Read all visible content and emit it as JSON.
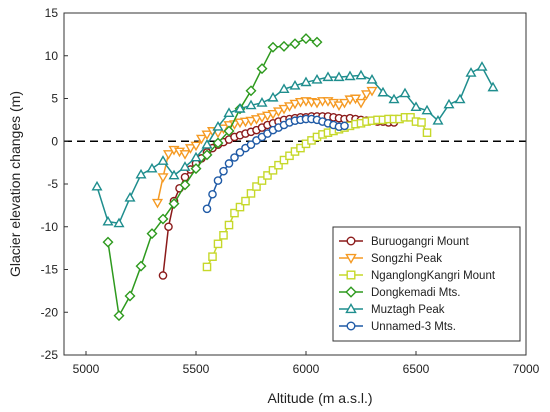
{
  "chart_data": {
    "type": "line",
    "title": "",
    "xlabel": "Altitude (m a.s.l.)",
    "ylabel": "Glacier elevation changes (m)",
    "xlim": [
      4900,
      7000
    ],
    "ylim": [
      -25,
      15
    ],
    "xticks": [
      5000,
      5500,
      6000,
      6500,
      7000
    ],
    "yticks": [
      -25,
      -20,
      -15,
      -10,
      -5,
      0,
      5,
      10,
      15
    ],
    "reference_line": {
      "y": 0,
      "style": "dashed"
    },
    "legend_position": "bottom-right",
    "grid": false,
    "series": [
      {
        "name": "Buruogangri Mount",
        "color": "#8b1a1a",
        "marker": "circle",
        "points": [
          [
            5350,
            -15.7
          ],
          [
            5375,
            -10
          ],
          [
            5400,
            -7
          ],
          [
            5425,
            -5.5
          ],
          [
            5450,
            -4.2
          ],
          [
            5475,
            -3.3
          ],
          [
            5500,
            -2.6
          ],
          [
            5525,
            -2
          ],
          [
            5550,
            -1.3
          ],
          [
            5575,
            -0.8
          ],
          [
            5600,
            -0.4
          ],
          [
            5625,
            -0.1
          ],
          [
            5650,
            0.2
          ],
          [
            5675,
            0.5
          ],
          [
            5700,
            0.7
          ],
          [
            5725,
            0.9
          ],
          [
            5750,
            1.1
          ],
          [
            5775,
            1.3
          ],
          [
            5800,
            1.6
          ],
          [
            5825,
            1.9
          ],
          [
            5850,
            2.1
          ],
          [
            5875,
            2.3
          ],
          [
            5900,
            2.5
          ],
          [
            5925,
            2.6
          ],
          [
            5950,
            2.7
          ],
          [
            5975,
            2.8
          ],
          [
            6000,
            2.8
          ],
          [
            6025,
            2.9
          ],
          [
            6050,
            2.9
          ],
          [
            6075,
            2.9
          ],
          [
            6100,
            2.9
          ],
          [
            6125,
            2.8
          ],
          [
            6150,
            2.7
          ],
          [
            6175,
            2.6
          ],
          [
            6200,
            2.7
          ],
          [
            6225,
            2.6
          ],
          [
            6250,
            2.5
          ],
          [
            6275,
            2.4
          ],
          [
            6300,
            2.4
          ],
          [
            6325,
            2.3
          ],
          [
            6350,
            2.3
          ],
          [
            6375,
            2.2
          ],
          [
            6400,
            2.2
          ]
        ]
      },
      {
        "name": "Songzhi Peak",
        "color": "#f59a23",
        "marker": "triangle-down",
        "points": [
          [
            5325,
            -7.2
          ],
          [
            5350,
            -4.2
          ],
          [
            5375,
            -1.5
          ],
          [
            5400,
            -1.0
          ],
          [
            5425,
            -1.2
          ],
          [
            5450,
            -1.5
          ],
          [
            5475,
            -0.8
          ],
          [
            5500,
            -0.5
          ],
          [
            5525,
            0.3
          ],
          [
            5550,
            0.8
          ],
          [
            5575,
            1.2
          ],
          [
            5600,
            1.0
          ],
          [
            5625,
            1.5
          ],
          [
            5650,
            1.9
          ],
          [
            5675,
            2.0
          ],
          [
            5700,
            2.2
          ],
          [
            5725,
            2.3
          ],
          [
            5750,
            2.4
          ],
          [
            5775,
            2.6
          ],
          [
            5800,
            2.8
          ],
          [
            5825,
            3.0
          ],
          [
            5850,
            3.2
          ],
          [
            5875,
            3.5
          ],
          [
            5900,
            3.8
          ],
          [
            5925,
            4.1
          ],
          [
            5950,
            4.4
          ],
          [
            5975,
            4.6
          ],
          [
            6000,
            4.7
          ],
          [
            6025,
            4.6
          ],
          [
            6050,
            4.5
          ],
          [
            6075,
            4.7
          ],
          [
            6100,
            4.7
          ],
          [
            6125,
            4.5
          ],
          [
            6150,
            4.2
          ],
          [
            6175,
            4.5
          ],
          [
            6200,
            4.9
          ],
          [
            6225,
            5.0
          ],
          [
            6250,
            4.5
          ],
          [
            6275,
            5.5
          ],
          [
            6300,
            5.9
          ]
        ]
      },
      {
        "name": "NganglongKangri Mount",
        "color": "#c6d82a",
        "marker": "square",
        "points": [
          [
            5550,
            -14.7
          ],
          [
            5575,
            -13.5
          ],
          [
            5600,
            -12
          ],
          [
            5625,
            -11
          ],
          [
            5650,
            -9.8
          ],
          [
            5675,
            -8.4
          ],
          [
            5700,
            -7.7
          ],
          [
            5725,
            -7
          ],
          [
            5750,
            -6.1
          ],
          [
            5775,
            -5.3
          ],
          [
            5800,
            -4.6
          ],
          [
            5825,
            -4
          ],
          [
            5850,
            -3.4
          ],
          [
            5875,
            -2.8
          ],
          [
            5900,
            -2.2
          ],
          [
            5925,
            -1.7
          ],
          [
            5950,
            -1.2
          ],
          [
            5975,
            -0.8
          ],
          [
            6000,
            -0.3
          ],
          [
            6025,
            0.1
          ],
          [
            6050,
            0.5
          ],
          [
            6075,
            0.8
          ],
          [
            6100,
            1.0
          ],
          [
            6125,
            1.2
          ],
          [
            6150,
            1.4
          ],
          [
            6175,
            1.6
          ],
          [
            6200,
            1.8
          ],
          [
            6225,
            2.0
          ],
          [
            6250,
            2.1
          ],
          [
            6275,
            2.3
          ],
          [
            6300,
            2.4
          ],
          [
            6325,
            2.5
          ],
          [
            6350,
            2.5
          ],
          [
            6375,
            2.6
          ],
          [
            6400,
            2.6
          ],
          [
            6425,
            2.6
          ],
          [
            6450,
            2.8
          ],
          [
            6475,
            2.8
          ],
          [
            6500,
            2.3
          ],
          [
            6525,
            2.2
          ],
          [
            6550,
            1.0
          ]
        ]
      },
      {
        "name": "Dongkemadi Mts.",
        "color": "#2e9a1e",
        "marker": "diamond",
        "points": [
          [
            5100,
            -11.8
          ],
          [
            5150,
            -20.4
          ],
          [
            5200,
            -18.1
          ],
          [
            5250,
            -14.6
          ],
          [
            5300,
            -10.8
          ],
          [
            5350,
            -9.1
          ],
          [
            5400,
            -7.3
          ],
          [
            5450,
            -5.1
          ],
          [
            5500,
            -3.2
          ],
          [
            5550,
            -1.6
          ],
          [
            5600,
            -0.2
          ],
          [
            5650,
            1.2
          ],
          [
            5700,
            3.8
          ],
          [
            5750,
            5.9
          ],
          [
            5800,
            8.5
          ],
          [
            5850,
            11
          ],
          [
            5900,
            11.1
          ],
          [
            5950,
            11.4
          ],
          [
            6000,
            12
          ],
          [
            6050,
            11.6
          ]
        ]
      },
      {
        "name": "Muztagh Peak",
        "color": "#1f8e8e",
        "marker": "triangle-up",
        "points": [
          [
            5050,
            -5.3
          ],
          [
            5100,
            -9.4
          ],
          [
            5150,
            -9.6
          ],
          [
            5200,
            -6.6
          ],
          [
            5250,
            -3.9
          ],
          [
            5300,
            -3.2
          ],
          [
            5350,
            -2.3
          ],
          [
            5400,
            -4.0
          ],
          [
            5450,
            -3.0
          ],
          [
            5500,
            -1.9
          ],
          [
            5550,
            -0.4
          ],
          [
            5600,
            1.7
          ],
          [
            5650,
            3.3
          ],
          [
            5700,
            3.8
          ],
          [
            5750,
            4.2
          ],
          [
            5800,
            4.5
          ],
          [
            5850,
            5.1
          ],
          [
            5900,
            6.1
          ],
          [
            5950,
            6.5
          ],
          [
            6000,
            6.9
          ],
          [
            6050,
            7.2
          ],
          [
            6100,
            7.5
          ],
          [
            6150,
            7.5
          ],
          [
            6200,
            7.6
          ],
          [
            6250,
            7.7
          ],
          [
            6300,
            7.2
          ],
          [
            6350,
            5.7
          ],
          [
            6400,
            4.9
          ],
          [
            6450,
            5.6
          ],
          [
            6500,
            4.0
          ],
          [
            6550,
            3.6
          ],
          [
            6600,
            2.4
          ],
          [
            6650,
            4.3
          ],
          [
            6700,
            4.9
          ],
          [
            6750,
            8.0
          ],
          [
            6800,
            8.7
          ],
          [
            6850,
            6.3
          ]
        ]
      },
      {
        "name": "Unnamed-3 Mts.",
        "color": "#1f5aa6",
        "marker": "circle",
        "points": [
          [
            5550,
            -7.9
          ],
          [
            5575,
            -6.2
          ],
          [
            5600,
            -4.6
          ],
          [
            5625,
            -3.5
          ],
          [
            5650,
            -2.6
          ],
          [
            5675,
            -1.9
          ],
          [
            5700,
            -1.3
          ],
          [
            5725,
            -0.8
          ],
          [
            5750,
            -0.4
          ],
          [
            5775,
            0.1
          ],
          [
            5800,
            0.5
          ],
          [
            5825,
            0.9
          ],
          [
            5850,
            1.3
          ],
          [
            5875,
            1.6
          ],
          [
            5900,
            1.9
          ],
          [
            5925,
            2.2
          ],
          [
            5950,
            2.4
          ],
          [
            5975,
            2.5
          ],
          [
            6000,
            2.6
          ],
          [
            6025,
            2.6
          ],
          [
            6050,
            2.5
          ],
          [
            6075,
            2.3
          ],
          [
            6100,
            2.1
          ],
          [
            6125,
            1.9
          ],
          [
            6150,
            1.7
          ],
          [
            6175,
            1.8
          ]
        ]
      }
    ]
  }
}
